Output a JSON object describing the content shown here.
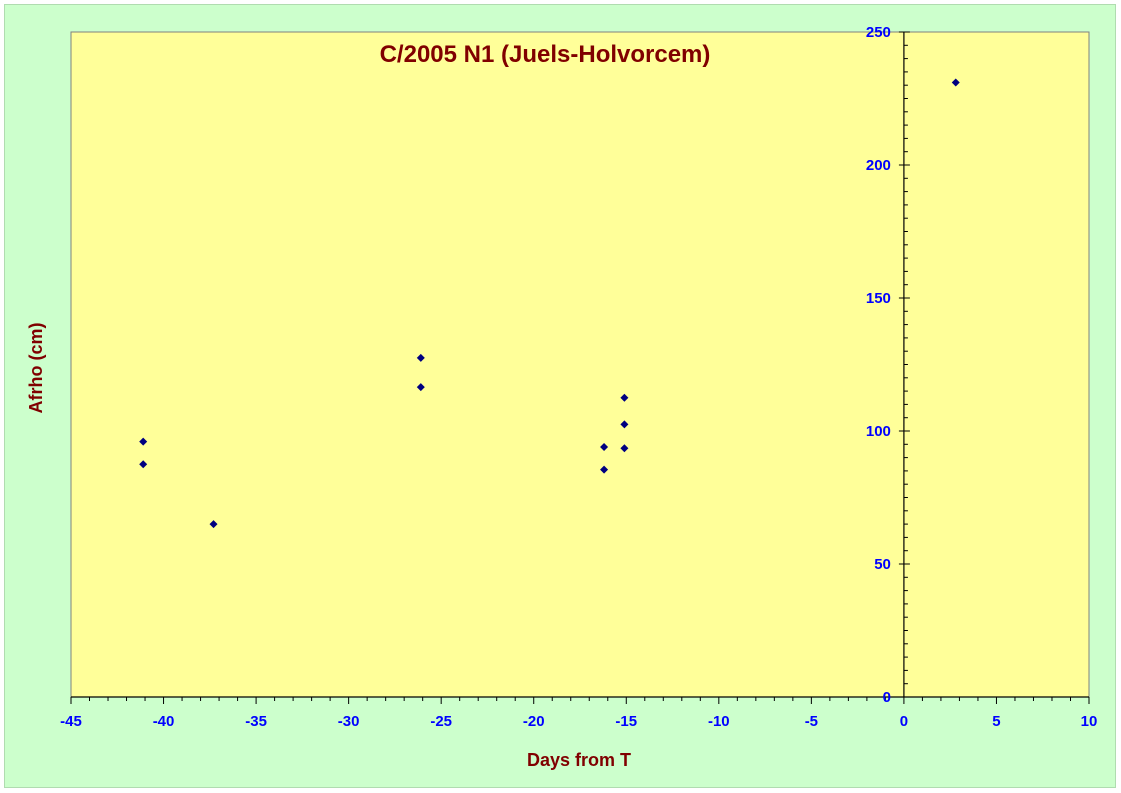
{
  "colors": {
    "page_background": "#ccffcc",
    "plot_background": "#ffff99",
    "title": "#800000",
    "axis_title": "#800000",
    "tick_label": "#0000ff",
    "marker": "#000080",
    "axis_line": "#000000"
  },
  "chart_data": {
    "type": "scatter",
    "title": "C/2005 N1 (Juels-Holvorcem)",
    "xlabel": "Days from T",
    "ylabel": "Afrho (cm)",
    "xlim": [
      -45,
      10
    ],
    "ylim": [
      0,
      250
    ],
    "x_ticks": [
      -45,
      -40,
      -35,
      -30,
      -25,
      -20,
      -15,
      -10,
      -5,
      0,
      5,
      10
    ],
    "y_ticks": [
      0,
      50,
      100,
      150,
      200,
      250
    ],
    "grid": false,
    "legend": "none",
    "marker": "diamond",
    "y_axis_crosses_at_x": 0,
    "points": [
      {
        "x": -41.1,
        "y": 96
      },
      {
        "x": -41.1,
        "y": 87.5
      },
      {
        "x": -37.3,
        "y": 65
      },
      {
        "x": -26.1,
        "y": 127.5
      },
      {
        "x": -26.1,
        "y": 116.5
      },
      {
        "x": -16.2,
        "y": 94
      },
      {
        "x": -16.2,
        "y": 85.5
      },
      {
        "x": -15.1,
        "y": 112.5
      },
      {
        "x": -15.1,
        "y": 102.5
      },
      {
        "x": -15.1,
        "y": 93.5
      },
      {
        "x": 2.8,
        "y": 231
      }
    ]
  }
}
